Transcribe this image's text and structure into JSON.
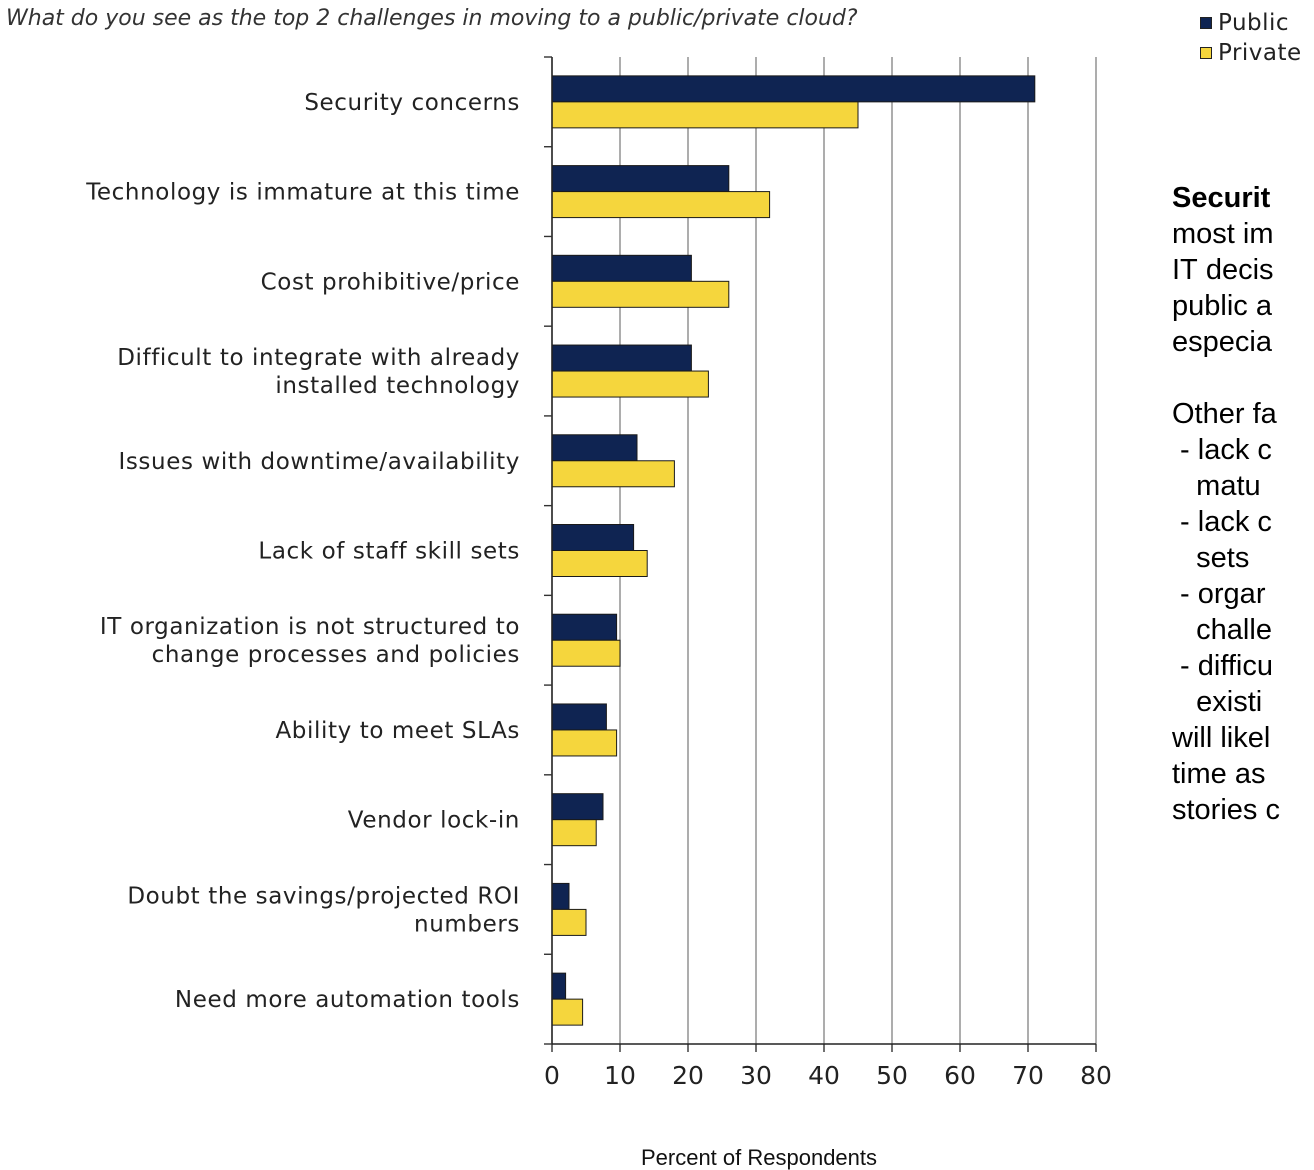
{
  "question": "What do you see as the top 2 challenges in moving to a public/private cloud?",
  "legend": [
    {
      "label": "Public",
      "color": "#0f2452"
    },
    {
      "label": "Private",
      "color": "#f5d63d"
    }
  ],
  "text_panel": {
    "lines": [
      {
        "text": "Securit",
        "bold": true
      },
      {
        "text": "most im"
      },
      {
        "text": "IT decis"
      },
      {
        "text": "public a"
      },
      {
        "text": "especia"
      },
      {
        "text": ""
      },
      {
        "text": "Other fa"
      },
      {
        "text": " - lack c"
      },
      {
        "text": "   matu"
      },
      {
        "text": " - lack c"
      },
      {
        "text": "   sets"
      },
      {
        "text": " - orgar"
      },
      {
        "text": "   challe"
      },
      {
        "text": " - difficu"
      },
      {
        "text": "   existi"
      },
      {
        "text": "will likel"
      },
      {
        "text": "time as"
      },
      {
        "text": "stories c"
      }
    ]
  },
  "chart_data": {
    "type": "bar",
    "orientation": "horizontal",
    "title": "What do you see as the top 2 challenges in moving to a public/private cloud?",
    "xlabel": "Percent of Respondents",
    "ylabel": "",
    "xlim": [
      0,
      80
    ],
    "xticks": [
      0,
      10,
      20,
      30,
      40,
      50,
      60,
      70,
      80
    ],
    "grid": "vertical",
    "legend_position": "top-right",
    "categories": [
      [
        "Security concerns"
      ],
      [
        "Technology is immature at this time"
      ],
      [
        "Cost prohibitive/price"
      ],
      [
        "Difficult to integrate with already",
        "installed technology"
      ],
      [
        "Issues with downtime/availability"
      ],
      [
        "Lack of staff skill sets"
      ],
      [
        "IT organization is not structured to",
        "change processes and policies"
      ],
      [
        "Ability to meet SLAs"
      ],
      [
        "Vendor lock-in"
      ],
      [
        "Doubt the savings/projected ROI",
        "numbers"
      ],
      [
        "Need more automation tools"
      ]
    ],
    "series": [
      {
        "name": "Public",
        "color": "#0f2452",
        "values": [
          71,
          26,
          20.5,
          20.5,
          12.5,
          12,
          9.5,
          8,
          7.5,
          2.5,
          2
        ]
      },
      {
        "name": "Private",
        "color": "#f5d63d",
        "values": [
          45,
          32,
          26,
          23,
          18,
          14,
          10,
          9.5,
          6.5,
          5,
          4.5
        ]
      }
    ]
  }
}
